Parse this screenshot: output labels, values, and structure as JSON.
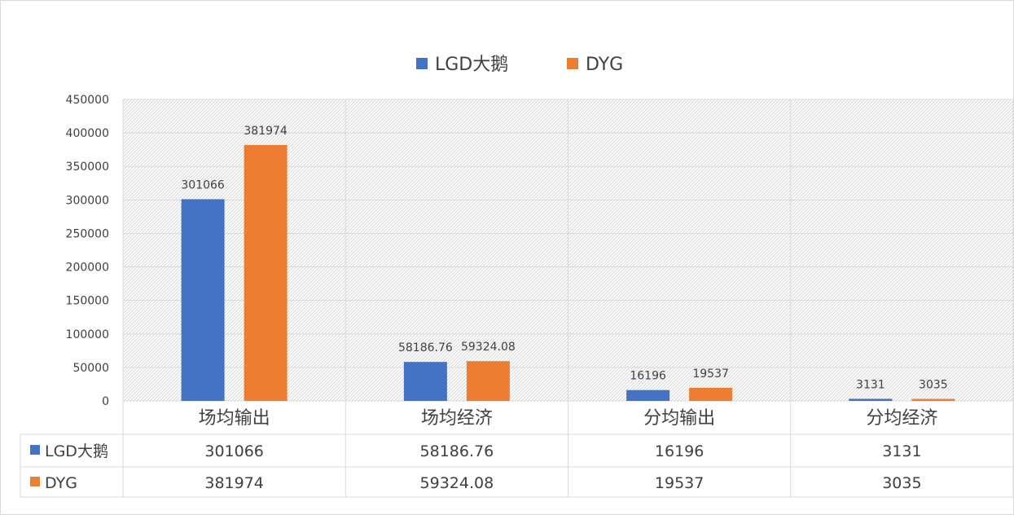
{
  "chart_data": {
    "type": "bar",
    "categories": [
      "场均输出",
      "场均经济",
      "分均输出",
      "分均经济"
    ],
    "series": [
      {
        "name": "LGD大鹅",
        "color": "#4472C4",
        "values": [
          301066,
          58186.76,
          16196,
          3131
        ],
        "labels": [
          "301066",
          "58186.76",
          "16196",
          "3131"
        ]
      },
      {
        "name": "DYG",
        "color": "#ED7D31",
        "values": [
          381974,
          59324.08,
          19537,
          3035
        ],
        "labels": [
          "381974",
          "59324.08",
          "19537",
          "3035"
        ]
      }
    ],
    "ylim": [
      0,
      450000
    ],
    "yticks": [
      "0",
      "50000",
      "100000",
      "150000",
      "200000",
      "250000",
      "300000",
      "350000",
      "400000",
      "450000"
    ],
    "legend": "top",
    "data_table": true,
    "grid": true
  }
}
